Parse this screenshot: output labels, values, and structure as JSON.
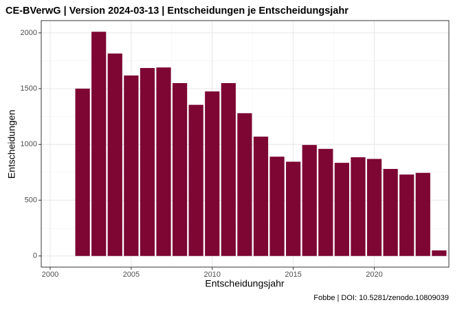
{
  "chart_data": {
    "type": "bar",
    "title": "CE-BVerwG | Version 2024-03-13 | Entscheidungen je Entscheidungsjahr",
    "x_label": "Entscheidungsjahr",
    "y_label": "Entscheidungen",
    "caption": "Fobbe | DOI: 10.5281/zenodo.10809039",
    "x": [
      2002,
      2003,
      2004,
      2005,
      2006,
      2007,
      2008,
      2009,
      2010,
      2011,
      2012,
      2013,
      2014,
      2015,
      2016,
      2017,
      2018,
      2019,
      2020,
      2021,
      2022,
      2023,
      2024
    ],
    "values": [
      1500,
      2010,
      1815,
      1618,
      1685,
      1690,
      1550,
      1355,
      1475,
      1550,
      1280,
      1070,
      890,
      845,
      995,
      960,
      835,
      885,
      870,
      780,
      730,
      745,
      50
    ],
    "color": "#7d0633",
    "xlim": [
      1999.45,
      2024.6
    ],
    "xticks": [
      2000,
      2005,
      2010,
      2015,
      2020
    ],
    "ylim": [
      -100,
      2110
    ],
    "yticks": [
      0,
      500,
      1000,
      1500,
      2000
    ],
    "grid": true
  }
}
